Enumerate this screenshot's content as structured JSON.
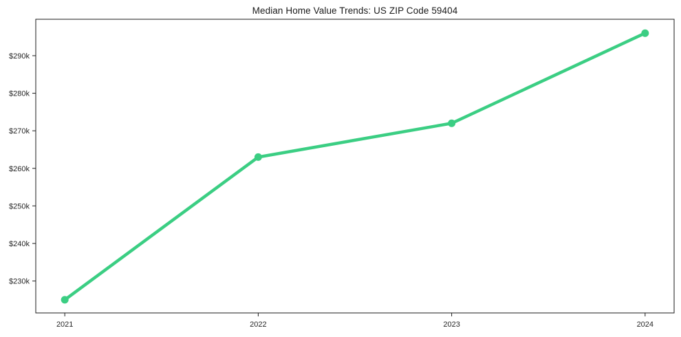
{
  "chart_data": {
    "type": "line",
    "title": "Median Home Value Trends: US ZIP Code 59404",
    "x": [
      2021,
      2022,
      2023,
      2024
    ],
    "x_tick_labels": [
      "2021",
      "2022",
      "2023",
      "2024"
    ],
    "series": [
      {
        "name": "Median Home Value",
        "values": [
          225000,
          263000,
          272000,
          296000
        ]
      }
    ],
    "y_ticks": [
      230000,
      240000,
      250000,
      260000,
      270000,
      280000,
      290000
    ],
    "y_tick_labels": [
      "$230k",
      "$240k",
      "$250k",
      "$260k",
      "$270k",
      "$280k",
      "$290k"
    ],
    "xlim": [
      2020.85,
      2024.15
    ],
    "ylim": [
      221500,
      299700
    ],
    "grid": false,
    "legend": "none",
    "line_color": "#3bce83",
    "marker": "circle",
    "marker_radius": 5.5,
    "line_width": 4.5,
    "axis_color": "#1a1a1a",
    "tick_label_color": "#262626",
    "background": "#ffffff"
  }
}
